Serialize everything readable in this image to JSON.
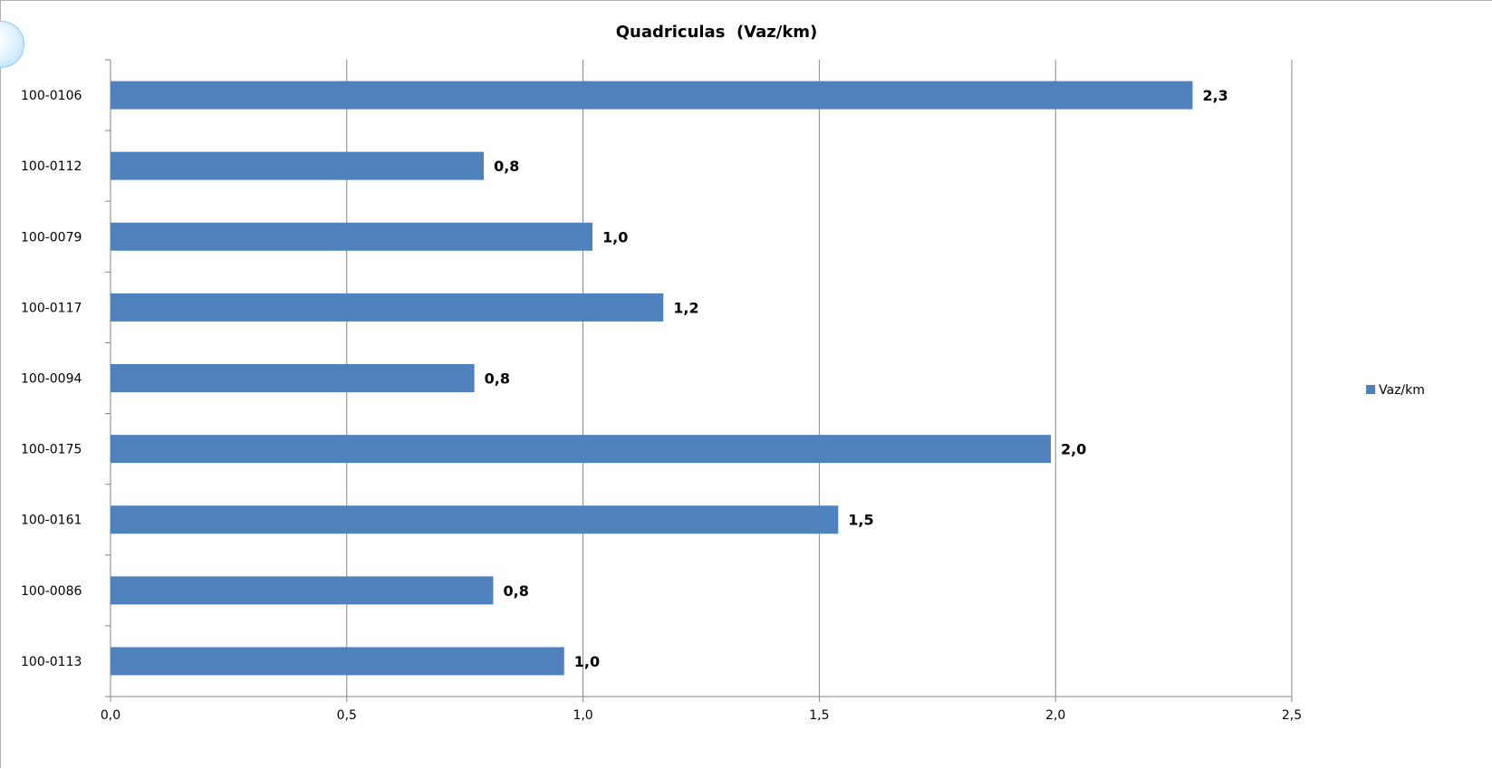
{
  "chart_data": {
    "type": "bar",
    "orientation": "horizontal",
    "title": "Quadriculas  (Vaz/km)",
    "xlabel": "",
    "ylabel": "",
    "categories": [
      "100-0106",
      "100-0112",
      "100-0079",
      "100-0117",
      "100-0094",
      "100-0175",
      "100-0161",
      "100-0086",
      "100-0113"
    ],
    "series": [
      {
        "name": "Vaz/km",
        "color": "#4f81bd",
        "values": [
          2.29,
          0.79,
          1.02,
          1.17,
          0.77,
          1.99,
          1.54,
          0.81,
          0.96
        ],
        "data_labels": [
          "2,3",
          "0,8",
          "1,0",
          "1,2",
          "0,8",
          "2,0",
          "1,5",
          "0,8",
          "1,0"
        ]
      }
    ],
    "xlim": [
      0,
      2.5
    ],
    "x_ticks": [
      "0,0",
      "0,5",
      "1,0",
      "1,5",
      "2,0",
      "2,5"
    ],
    "x_tick_values": [
      0,
      0.5,
      1,
      1.5,
      2,
      2.5
    ],
    "grid": true,
    "legend": "right"
  }
}
